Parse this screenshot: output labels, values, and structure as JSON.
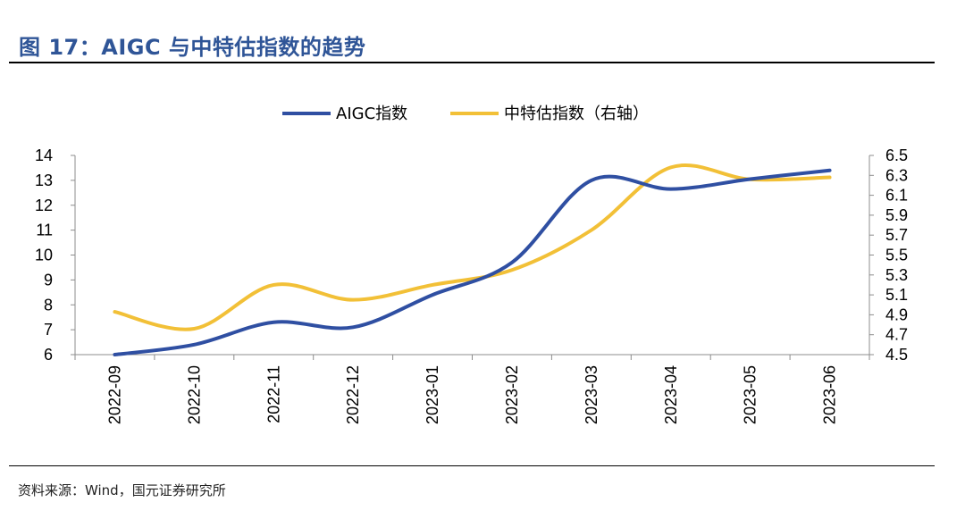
{
  "title": "图 17：AIGC 与中特估指数的趋势",
  "source": "资料来源：Wind，国元证券研究所",
  "chart_data": {
    "type": "line",
    "categories": [
      "2022-09",
      "2022-10",
      "2022-11",
      "2022-12",
      "2023-01",
      "2023-02",
      "2023-03",
      "2023-04",
      "2023-05",
      "2023-06"
    ],
    "series": [
      {
        "name": "AIGC指数",
        "axis": "left",
        "color": "#2f4fa2",
        "values": [
          6.0,
          6.4,
          7.3,
          7.1,
          8.4,
          9.7,
          13.0,
          12.65,
          13.05,
          13.4
        ]
      },
      {
        "name": "中特估指数（右轴）",
        "axis": "right",
        "color": "#f2c037",
        "values": [
          4.93,
          4.76,
          5.2,
          5.05,
          5.2,
          5.35,
          5.75,
          6.38,
          6.26,
          6.28
        ]
      }
    ],
    "y_left": {
      "min": 6,
      "max": 14,
      "ticks": [
        "6",
        "7",
        "8",
        "9",
        "10",
        "11",
        "12",
        "13",
        "14"
      ]
    },
    "y_right": {
      "min": 4.5,
      "max": 6.5,
      "ticks": [
        "4.5",
        "4.7",
        "4.9",
        "5.1",
        "5.3",
        "5.5",
        "5.7",
        "5.9",
        "6.1",
        "6.3",
        "6.5"
      ]
    },
    "grid": false,
    "legend_position": "top-center",
    "smooth": true
  }
}
